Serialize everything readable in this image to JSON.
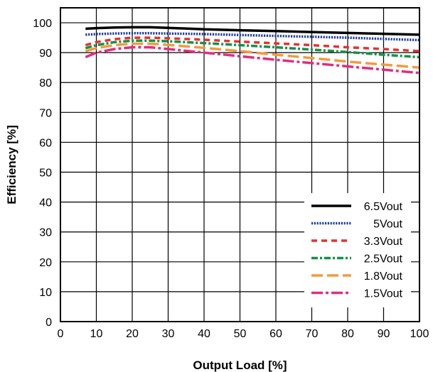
{
  "chart_data": {
    "type": "line",
    "title": "",
    "xlabel": "Output Load [%]",
    "ylabel": "Efficiency [%]",
    "xlim": [
      0,
      100
    ],
    "ylim": [
      0,
      105
    ],
    "x_ticks": [
      0,
      10,
      20,
      30,
      40,
      50,
      60,
      70,
      80,
      90,
      100
    ],
    "y_ticks": [
      0,
      10,
      20,
      30,
      40,
      50,
      60,
      70,
      80,
      90,
      100
    ],
    "grid": true,
    "legend_position": "bottom-right",
    "series": [
      {
        "name": "6.5Vout",
        "color": "#000000",
        "dash": "solid",
        "x": [
          7,
          10,
          15,
          20,
          25,
          30,
          40,
          50,
          60,
          70,
          80,
          90,
          100
        ],
        "y": [
          98.0,
          98.2,
          98.4,
          98.5,
          98.5,
          98.3,
          97.8,
          97.5,
          97.2,
          96.9,
          96.6,
          96.3,
          96.0
        ]
      },
      {
        "name": "5Vout",
        "color": "#1f3f99",
        "dash": "dotted",
        "x": [
          7,
          10,
          15,
          20,
          25,
          30,
          40,
          50,
          60,
          70,
          80,
          90,
          100
        ],
        "y": [
          96.0,
          96.2,
          96.4,
          96.5,
          96.5,
          96.4,
          96.2,
          95.9,
          95.6,
          95.3,
          95.0,
          94.6,
          94.2
        ]
      },
      {
        "name": "3.3Vout",
        "color": "#e8312e",
        "dash": "dashed",
        "x": [
          7,
          10,
          15,
          20,
          25,
          30,
          40,
          50,
          60,
          70,
          80,
          90,
          100
        ],
        "y": [
          92.5,
          93.5,
          94.5,
          95.0,
          95.0,
          94.8,
          94.3,
          93.7,
          93.1,
          92.5,
          91.8,
          91.2,
          90.5
        ]
      },
      {
        "name": "2.5Vout",
        "color": "#119248",
        "dash": "dash-dot",
        "x": [
          7,
          10,
          15,
          20,
          25,
          30,
          40,
          50,
          60,
          70,
          80,
          90,
          100
        ],
        "y": [
          91.5,
          92.5,
          93.5,
          94.0,
          94.0,
          93.8,
          93.2,
          92.5,
          91.8,
          91.0,
          90.2,
          89.3,
          88.5
        ]
      },
      {
        "name": "1.8Vout",
        "color": "#f39a3c",
        "dash": "long-dash",
        "x": [
          7,
          10,
          15,
          20,
          25,
          30,
          40,
          50,
          60,
          70,
          80,
          90,
          100
        ],
        "y": [
          90.5,
          91.5,
          92.5,
          93.0,
          93.0,
          92.6,
          91.6,
          90.5,
          89.3,
          88.2,
          87.0,
          86.0,
          85.0
        ]
      },
      {
        "name": "1.5Vout",
        "color": "#e12d7f",
        "dash": "long-dash-dot",
        "x": [
          7,
          10,
          15,
          20,
          25,
          30,
          40,
          50,
          60,
          70,
          80,
          90,
          100
        ],
        "y": [
          88.5,
          90.0,
          91.2,
          91.8,
          91.8,
          91.2,
          90.0,
          88.8,
          87.6,
          86.5,
          85.4,
          84.3,
          83.2
        ]
      }
    ]
  }
}
